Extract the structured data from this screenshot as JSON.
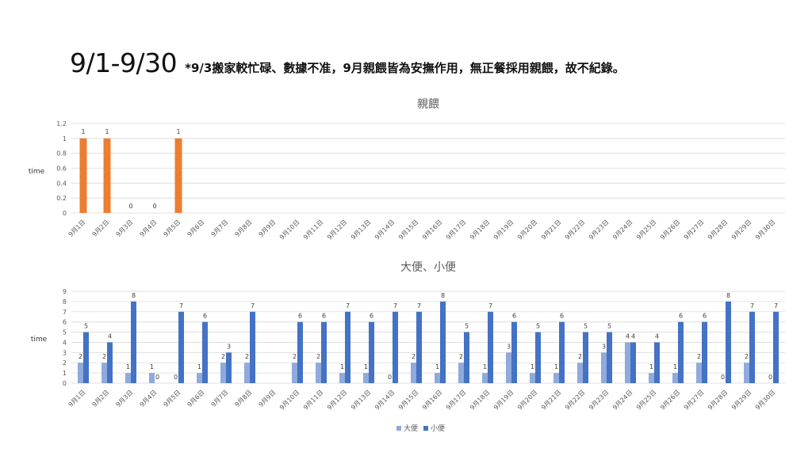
{
  "header": {
    "title": "9/1-9/30",
    "note": "*9/3搬家較忙碌、數據不准，9月親餵皆為安撫作用，無正餐採用親餵，故不紀錄。"
  },
  "colors": {
    "feeding": "#ED7D31",
    "stool": "#8FAADC",
    "urine": "#4472C4",
    "grid": "#D9D9D9",
    "text": "#595959"
  },
  "chart_data": [
    {
      "type": "bar",
      "title": "親餵",
      "ylabel": "time",
      "xlabel": "",
      "ylim": [
        0,
        1.2
      ],
      "yticks": [
        "0",
        "0.2",
        "0.4",
        "0.6",
        "0.8",
        "1",
        "1.2"
      ],
      "grid": true,
      "categories": [
        "9月1日",
        "9月2日",
        "9月3日",
        "9月4日",
        "9月5日",
        "9月6日",
        "9月7日",
        "9月8日",
        "9月9日",
        "9月10日",
        "9月11日",
        "9月12日",
        "9月13日",
        "9月14日",
        "9月15日",
        "9月16日",
        "9月17日",
        "9月18日",
        "9月19日",
        "9月20日",
        "9月21日",
        "9月22日",
        "9月23日",
        "9月24日",
        "9月25日",
        "9月26日",
        "9月27日",
        "9月28日",
        "9月29日",
        "9月30日"
      ],
      "series": [
        {
          "values": [
            1,
            1,
            0,
            0,
            1,
            null,
            null,
            null,
            null,
            null,
            null,
            null,
            null,
            null,
            null,
            null,
            null,
            null,
            null,
            null,
            null,
            null,
            null,
            null,
            null,
            null,
            null,
            null,
            null,
            null
          ]
        }
      ]
    },
    {
      "type": "bar",
      "title": "大便、小便",
      "ylabel": "time",
      "xlabel": "",
      "ylim": [
        0,
        9
      ],
      "yticks": [
        "0",
        "1",
        "2",
        "3",
        "4",
        "5",
        "6",
        "7",
        "8",
        "9"
      ],
      "grid": true,
      "legend_position": "bottom",
      "categories": [
        "9月1日",
        "9月2日",
        "9月3日",
        "9月4日",
        "9月5日",
        "9月6日",
        "9月7日",
        "9月8日",
        "9月9日",
        "9月10日",
        "9月11日",
        "9月12日",
        "9月13日",
        "9月14日",
        "9月15日",
        "9月16日",
        "9月17日",
        "9月18日",
        "9月19日",
        "9月20日",
        "9月21日",
        "9月22日",
        "9月23日",
        "9月24日",
        "9月25日",
        "9月26日",
        "9月27日",
        "9月28日",
        "9月29日",
        "9月30日"
      ],
      "series": [
        {
          "name": "大便",
          "values": [
            2,
            2,
            1,
            1,
            0,
            1,
            2,
            2,
            null,
            2,
            2,
            1,
            1,
            0,
            2,
            1,
            2,
            1,
            3,
            1,
            1,
            2,
            3,
            4,
            1,
            1,
            2,
            0,
            2,
            0
          ]
        },
        {
          "name": "小便",
          "values": [
            5,
            4,
            8,
            0,
            7,
            6,
            3,
            7,
            null,
            6,
            6,
            7,
            6,
            7,
            7,
            8,
            5,
            7,
            6,
            5,
            6,
            5,
            5,
            4,
            4,
            6,
            6,
            8,
            7,
            7
          ]
        }
      ]
    }
  ]
}
